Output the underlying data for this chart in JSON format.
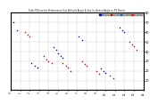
{
  "title": "Solar PV/Inverter Performance Sun Altitude Angle & Sun Incidence Angle on PV Panels",
  "bg_color": "#ffffff",
  "plot_bg": "#ffffff",
  "legend": [
    {
      "label": "HOT 7Jun",
      "color": "#0000ee"
    },
    {
      "label": "Inc 7Jun",
      "color": "#cc0000"
    },
    {
      "label": "Alt 21Jun",
      "color": "#0055cc"
    },
    {
      "label": "Inc 21Jun",
      "color": "#ee2200"
    }
  ],
  "xlim": [
    0,
    14
  ],
  "ylim": [
    0,
    80
  ],
  "yticks": [
    10,
    20,
    30,
    40,
    50,
    60,
    70,
    80
  ],
  "ytick_labels": [
    "10",
    "20",
    "30",
    "40",
    "50",
    "60",
    "70",
    "80"
  ],
  "num_xticks": 14,
  "xtick_step": 1,
  "blue_dots": [
    [
      0.3,
      70
    ],
    [
      0.7,
      62
    ],
    [
      2.2,
      28
    ],
    [
      2.5,
      25
    ],
    [
      2.8,
      23
    ],
    [
      4.5,
      44
    ],
    [
      4.8,
      42
    ],
    [
      5.0,
      38
    ],
    [
      5.3,
      35
    ],
    [
      5.5,
      33
    ],
    [
      7.2,
      55
    ],
    [
      7.5,
      52
    ],
    [
      9.5,
      22
    ],
    [
      9.8,
      20
    ],
    [
      10.0,
      18
    ],
    [
      11.5,
      65
    ],
    [
      11.8,
      62
    ],
    [
      12.0,
      60
    ]
  ],
  "red_dots": [
    [
      1.5,
      60
    ],
    [
      1.8,
      57
    ],
    [
      2.0,
      55
    ],
    [
      3.5,
      35
    ],
    [
      3.8,
      32
    ],
    [
      4.0,
      30
    ],
    [
      4.3,
      28
    ],
    [
      5.5,
      28
    ],
    [
      5.8,
      25
    ],
    [
      6.0,
      23
    ],
    [
      6.3,
      20
    ],
    [
      7.5,
      30
    ],
    [
      7.8,
      27
    ],
    [
      8.0,
      25
    ],
    [
      9.0,
      20
    ],
    [
      9.3,
      17
    ],
    [
      10.5,
      15
    ],
    [
      10.8,
      12
    ],
    [
      12.5,
      50
    ],
    [
      12.8,
      47
    ],
    [
      13.0,
      45
    ],
    [
      13.3,
      42
    ]
  ]
}
